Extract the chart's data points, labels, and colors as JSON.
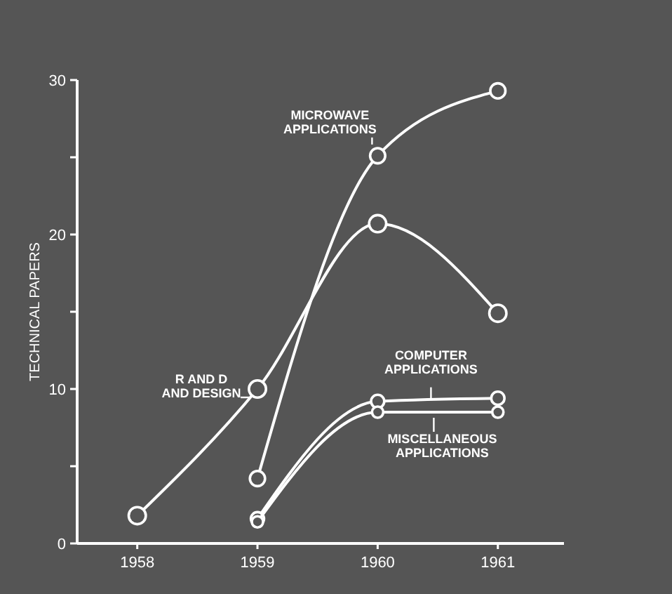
{
  "chart_data": {
    "type": "line",
    "ylabel": "TECHNICAL PAPERS",
    "x": [
      1958,
      1959,
      1960,
      1961
    ],
    "xlim": [
      1957.5,
      1961.55
    ],
    "xticks": [
      1958,
      1959,
      1960,
      1961
    ],
    "ylim": [
      0,
      30
    ],
    "yticks": [
      0,
      {
        "value": 5,
        "label": null
      },
      10,
      {
        "value": 15,
        "label": null
      },
      20,
      {
        "value": 25,
        "label": null
      },
      30
    ],
    "marker": "circle",
    "line_style": "solid",
    "series": [
      {
        "name": "R AND D AND DESIGN",
        "color": "#ffffff",
        "values": [
          1.8,
          10,
          20.7,
          14.9
        ]
      },
      {
        "name": "MICROWAVE APPLICATIONS",
        "color": "#ffffff",
        "x": [
          1959,
          1960,
          1961
        ],
        "values": [
          4.2,
          25.1,
          29.3
        ]
      },
      {
        "name": "COMPUTER APPLICATIONS",
        "color": "#ffffff",
        "x": [
          1959,
          1960,
          1961
        ],
        "values": [
          1.6,
          9.2,
          9.4
        ]
      },
      {
        "name": "MISCELLANEOUS APPLICATIONS",
        "color": "#ffffff",
        "x": [
          1959,
          1960,
          1961
        ],
        "values": [
          1.4,
          8.5,
          8.5
        ]
      }
    ]
  }
}
